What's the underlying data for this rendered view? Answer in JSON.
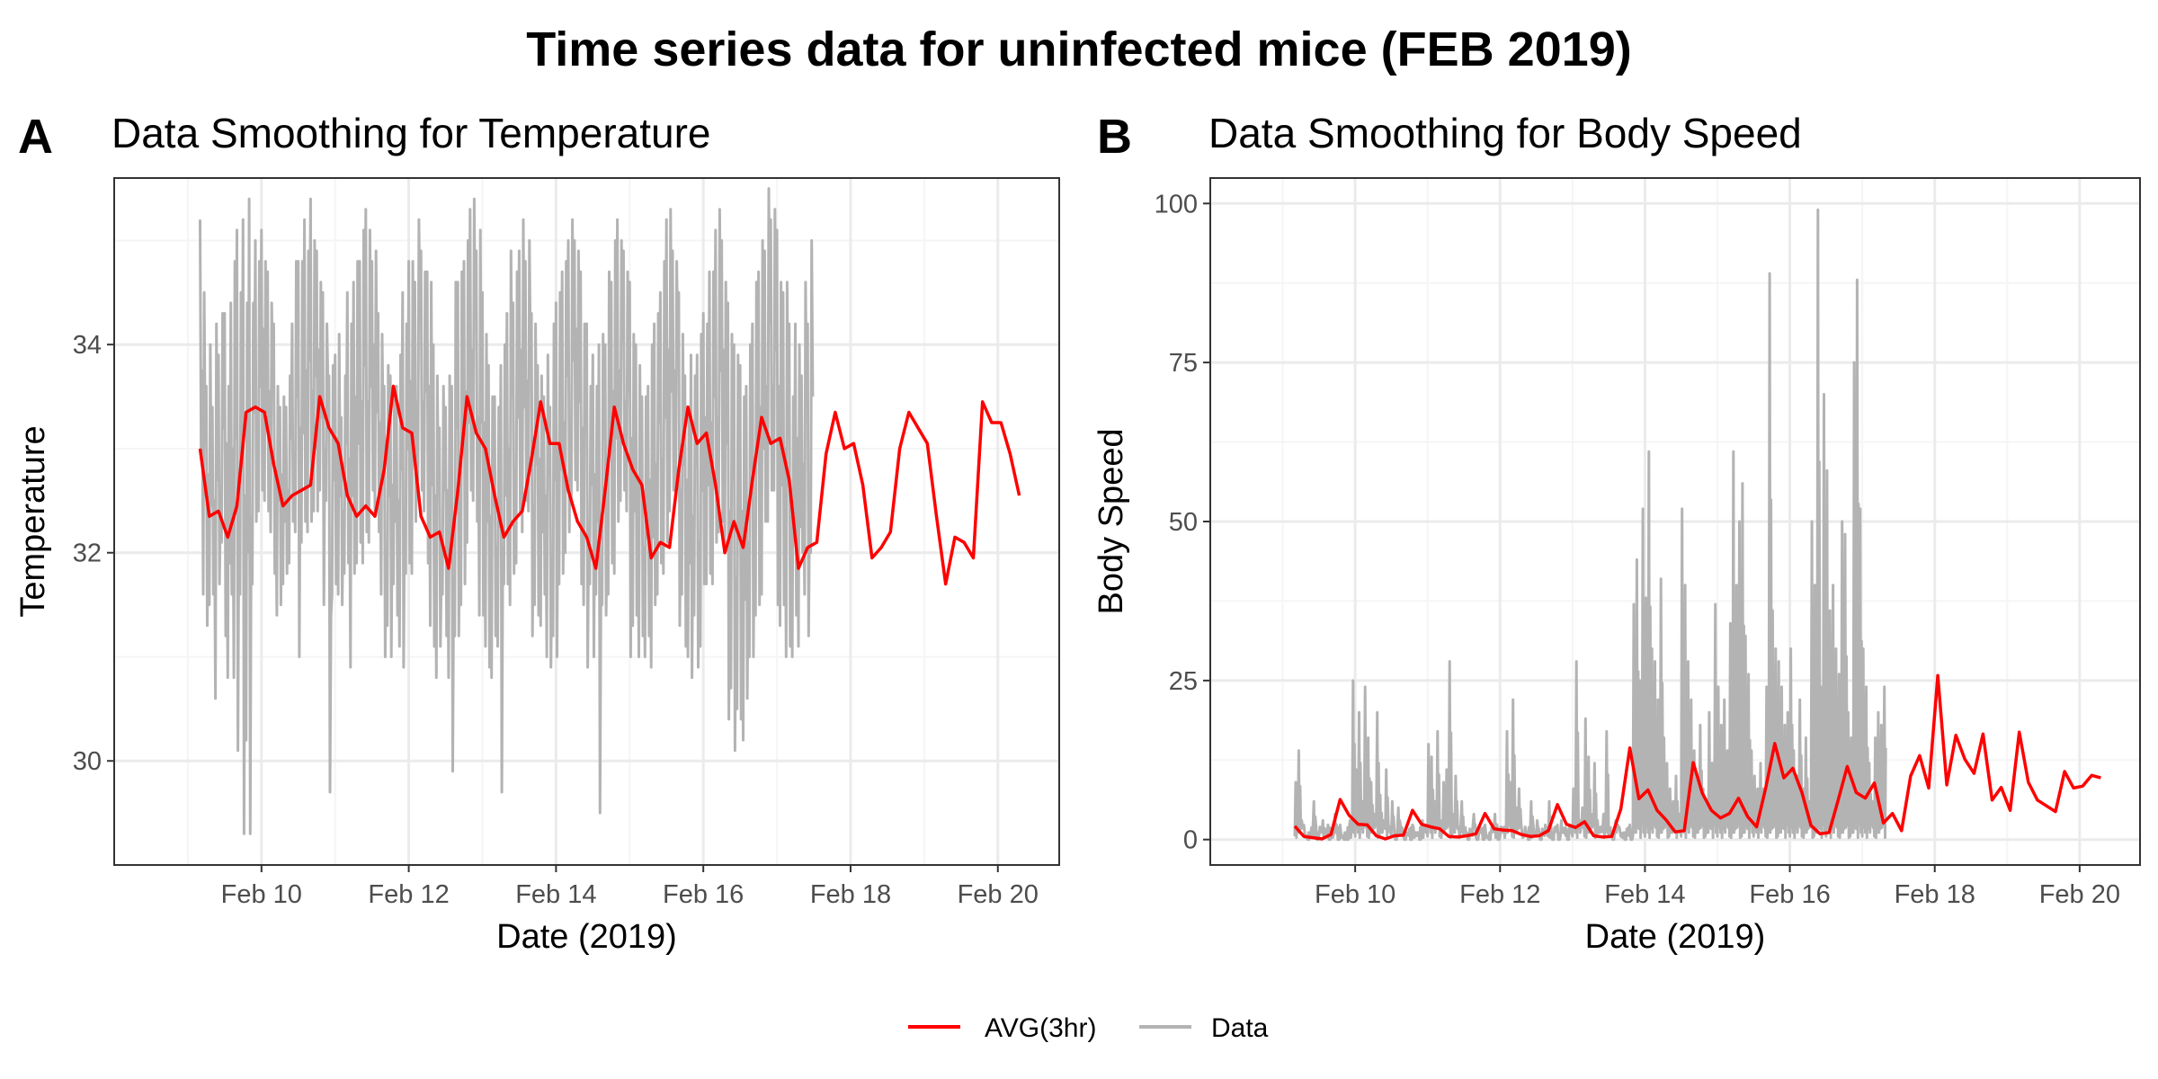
{
  "figure": {
    "title": "Time series data for uninfected mice (FEB 2019)"
  },
  "legend": {
    "position": "bottom",
    "items": [
      {
        "label": "AVG(3hr)",
        "color": "#ff0000"
      },
      {
        "label": "Data",
        "color": "#b3b3b3"
      }
    ]
  },
  "colors": {
    "avg": "#ff0000",
    "data": "#b3b3b3",
    "grid_major": "#ebebeb",
    "grid_minor": "#f5f5f5",
    "panel_border": "#333333"
  },
  "chart_data": [
    {
      "type": "line",
      "panel_letter": "A",
      "title": "Data Smoothing for Temperature",
      "xlabel": "Date (2019)",
      "ylabel": "Temperature",
      "grid": true,
      "xlim": [
        "2019-02-08",
        "2019-02-20 20:00"
      ],
      "ylim": [
        29.0,
        35.6
      ],
      "x_ticks": [
        {
          "date": "2019-02-10",
          "label": "Feb 10"
        },
        {
          "date": "2019-02-12",
          "label": "Feb 12"
        },
        {
          "date": "2019-02-14",
          "label": "Feb 14"
        },
        {
          "date": "2019-02-16",
          "label": "Feb 16"
        },
        {
          "date": "2019-02-18",
          "label": "Feb 18"
        },
        {
          "date": "2019-02-20",
          "label": "Feb 20"
        }
      ],
      "y_ticks": [
        {
          "value": 30,
          "label": "30"
        },
        {
          "value": 32,
          "label": "32"
        },
        {
          "value": 34,
          "label": "34"
        }
      ],
      "data_range": {
        "start": "2019-02-09 04:00",
        "end": "2019-02-20 05:00"
      },
      "series": [
        {
          "name": "Data",
          "x_start": "2019-02-09 04:00",
          "step_hours": 1,
          "low": [
            32.9,
            31.6,
            31.3,
            31.5,
            31.6,
            30.6,
            31.7,
            32.1,
            31.2,
            30.8,
            31.6,
            30.8,
            30.1,
            31.6,
            29.3,
            30.2,
            29.3,
            31.7,
            32.3,
            32.4,
            32.6,
            32.5,
            32.4,
            32.2,
            31.8,
            31.4,
            31.5,
            31.7,
            31.8,
            31.9,
            32.3,
            32.2,
            31.0,
            32.1,
            32.3,
            32.2,
            32.3,
            32.4,
            32.4,
            32.6,
            31.5,
            32.5,
            29.7,
            31.6,
            31.7,
            31.6,
            31.5,
            31.8,
            31.9,
            30.9,
            31.8,
            31.9,
            32.1,
            31.9,
            32.2,
            32.1,
            32.6,
            32.4,
            32.2,
            31.6,
            31.0,
            31.3,
            31.0,
            31.7,
            31.4,
            31.1,
            30.9,
            31.8,
            31.9,
            31.8,
            32.3,
            32.7,
            32.6,
            32.4,
            31.9,
            31.3,
            31.1,
            30.8,
            31.1,
            31.6,
            31.2,
            30.8,
            29.9,
            31.2,
            31.2,
            31.5,
            31.7,
            32.1,
            32.6,
            32.5,
            32.3,
            31.4,
            31.4,
            31.1,
            30.9,
            30.8,
            31.2,
            31.1,
            29.7,
            31.7,
            31.7,
            31.5,
            31.8,
            31.9,
            32.4,
            32.2,
            32.5,
            32.4,
            31.2,
            31.5,
            31.4,
            31.3,
            31.6,
            31.0,
            30.9,
            31.2,
            31.0,
            31.7,
            31.8,
            32.0,
            32.2,
            32.5,
            32.7,
            32.6,
            31.7,
            31.5,
            30.9,
            31.7,
            31.0,
            31.6,
            29.5,
            31.5,
            31.4,
            31.6,
            31.9,
            31.8,
            32.3,
            32.5,
            32.6,
            32.4,
            31.0,
            31.3,
            31.4,
            31.0,
            31.2,
            31.0,
            31.2,
            30.9,
            31.5,
            31.6,
            31.9,
            31.8,
            32.1,
            32.4,
            32.6,
            32.6,
            31.3,
            31.6,
            31.1,
            31.0,
            30.8,
            31.4,
            30.9,
            31.1,
            31.7,
            31.7,
            31.8,
            31.7,
            32.1,
            32.2,
            32.3,
            32.1,
            30.4,
            30.7,
            30.1,
            30.5,
            30.4,
            30.2,
            30.6,
            31.0,
            31.0,
            31.4,
            31.5,
            31.6,
            32.3,
            32.3,
            32.6,
            32.6,
            31.5,
            31.3,
            31.5,
            31.0,
            31.1,
            31.0,
            31.4,
            31.1,
            32.0,
            31.6,
            31.2,
            32.0
          ],
          "high": [
            35.2,
            34.5,
            33.6,
            34.0,
            33.4,
            34.2,
            33.9,
            34.3,
            34.3,
            33.6,
            34.4,
            34.8,
            35.1,
            34.5,
            35.2,
            34.4,
            35.4,
            34.4,
            35.0,
            34.8,
            35.1,
            34.8,
            34.7,
            34.4,
            34.2,
            33.6,
            33.4,
            33.5,
            33.4,
            33.7,
            34.2,
            34.8,
            34.8,
            34.8,
            35.2,
            34.9,
            35.4,
            35.0,
            34.9,
            34.6,
            34.5,
            34.2,
            33.7,
            33.8,
            33.9,
            34.1,
            33.3,
            33.7,
            34.5,
            34.2,
            34.6,
            34.8,
            34.8,
            35.1,
            35.3,
            35.1,
            34.8,
            34.9,
            34.3,
            34.1,
            33.6,
            33.8,
            33.7,
            33.5,
            33.6,
            33.9,
            34.5,
            34.2,
            34.8,
            34.8,
            34.6,
            35.2,
            34.9,
            34.7,
            34.7,
            34.6,
            34.0,
            33.7,
            33.2,
            33.6,
            33.4,
            33.7,
            33.6,
            34.6,
            34.6,
            34.7,
            34.8,
            35.0,
            35.3,
            35.4,
            34.9,
            35.1,
            34.5,
            34.1,
            33.8,
            33.5,
            33.5,
            33.4,
            33.8,
            34.0,
            34.3,
            34.9,
            34.4,
            34.7,
            34.9,
            35.2,
            34.8,
            35.0,
            34.3,
            34.2,
            33.8,
            33.7,
            33.5,
            33.9,
            33.4,
            34.2,
            34.4,
            34.5,
            34.7,
            34.8,
            35.0,
            35.2,
            35.0,
            34.9,
            34.7,
            34.2,
            34.2,
            33.6,
            33.9,
            33.6,
            34.0,
            34.1,
            34.0,
            34.7,
            34.6,
            35.0,
            35.2,
            35.0,
            34.9,
            34.7,
            34.6,
            34.1,
            34.0,
            33.8,
            33.5,
            33.5,
            33.6,
            34.0,
            34.2,
            34.3,
            34.5,
            34.8,
            35.2,
            35.3,
            34.9,
            34.8,
            34.5,
            34.1,
            33.7,
            33.4,
            33.9,
            33.7,
            33.9,
            34.1,
            34.3,
            34.2,
            34.7,
            34.7,
            35.1,
            35.3,
            35.0,
            34.6,
            34.4,
            34.1,
            34.0,
            33.9,
            33.8,
            33.5,
            33.6,
            34.0,
            34.2,
            34.6,
            34.7,
            35.0,
            34.9,
            35.5,
            35.2,
            35.3,
            35.1,
            34.6,
            34.5,
            34.6,
            34.2,
            33.5,
            34.2,
            34.0,
            33.7,
            34.6,
            34.2,
            35.0
          ]
        },
        {
          "name": "AVG(3hr)",
          "x_start": "2019-02-09 04:00",
          "step_hours": 3,
          "values": [
            33.0,
            32.35,
            32.4,
            32.15,
            32.45,
            33.35,
            33.4,
            33.35,
            32.85,
            32.45,
            32.55,
            32.6,
            32.65,
            33.5,
            33.2,
            33.05,
            32.55,
            32.35,
            32.45,
            32.35,
            32.8,
            33.6,
            33.2,
            33.15,
            32.35,
            32.15,
            32.2,
            31.85,
            32.6,
            33.5,
            33.15,
            33.0,
            32.55,
            32.15,
            32.3,
            32.4,
            32.9,
            33.45,
            33.05,
            33.05,
            32.6,
            32.3,
            32.15,
            31.85,
            32.6,
            33.4,
            33.05,
            32.8,
            32.65,
            31.95,
            32.1,
            32.05,
            32.8,
            33.4,
            33.05,
            33.15,
            32.65,
            32.0,
            32.3,
            32.05,
            32.7,
            33.3,
            33.05,
            33.1,
            32.7,
            31.85,
            32.05,
            32.1,
            32.95,
            33.35,
            33.0,
            33.05,
            32.65,
            31.95,
            32.05,
            32.2,
            33.0,
            33.35,
            33.2,
            33.05,
            32.35,
            31.7,
            32.15,
            32.1,
            31.95,
            33.45,
            33.25,
            33.25,
            32.95,
            32.55
          ]
        }
      ]
    },
    {
      "type": "line",
      "panel_letter": "B",
      "title": "Data Smoothing for Body Speed",
      "xlabel": "Date (2019)",
      "ylabel": "Body Speed",
      "grid": true,
      "xlim": [
        "2019-02-08",
        "2019-02-20 20:00"
      ],
      "ylim": [
        -4,
        104
      ],
      "x_ticks": [
        {
          "date": "2019-02-10",
          "label": "Feb 10"
        },
        {
          "date": "2019-02-12",
          "label": "Feb 12"
        },
        {
          "date": "2019-02-14",
          "label": "Feb 14"
        },
        {
          "date": "2019-02-16",
          "label": "Feb 16"
        },
        {
          "date": "2019-02-18",
          "label": "Feb 18"
        },
        {
          "date": "2019-02-20",
          "label": "Feb 20"
        }
      ],
      "y_ticks": [
        {
          "value": 0,
          "label": "0"
        },
        {
          "value": 25,
          "label": "25"
        },
        {
          "value": 50,
          "label": "50"
        },
        {
          "value": 75,
          "label": "75"
        },
        {
          "value": 100,
          "label": "100"
        }
      ],
      "data_range": {
        "start": "2019-02-09 04:00",
        "end": "2019-02-20 05:00"
      },
      "series": [
        {
          "name": "Data",
          "x_start": "2019-02-09 04:00",
          "step_hours": 1,
          "values": [
            9,
            14,
            3,
            1,
            0,
            1,
            6,
            0,
            2,
            3,
            1,
            0,
            1,
            4,
            0,
            1,
            0,
            0,
            3,
            25,
            11,
            20,
            6,
            24,
            16,
            9,
            4,
            20,
            7,
            3,
            11,
            2,
            6,
            0,
            5,
            1,
            0,
            1,
            0,
            2,
            1,
            0,
            3,
            2,
            15,
            13,
            6,
            17,
            3,
            9,
            11,
            28,
            4,
            10,
            2,
            6,
            1,
            0,
            1,
            4,
            0,
            2,
            0,
            1,
            0,
            2,
            4,
            0,
            2,
            2,
            17,
            9,
            22,
            5,
            8,
            1,
            2,
            0,
            6,
            1,
            3,
            0,
            1,
            1,
            6,
            0,
            2,
            0,
            3,
            1,
            0,
            2,
            8,
            28,
            3,
            5,
            19,
            13,
            4,
            12,
            3,
            2,
            4,
            17,
            1,
            0,
            3,
            2,
            1,
            0,
            1,
            0,
            37,
            44,
            25,
            52,
            38,
            61,
            30,
            28,
            22,
            41,
            16,
            12,
            8,
            6,
            10,
            4,
            52,
            40,
            28,
            22,
            14,
            10,
            18,
            8,
            6,
            20,
            12,
            37,
            24,
            18,
            22,
            14,
            34,
            61,
            40,
            50,
            56,
            32,
            26,
            14,
            10,
            8,
            12,
            8,
            24,
            89,
            36,
            30,
            28,
            24,
            18,
            20,
            30,
            14,
            10,
            22,
            8,
            16,
            6,
            50,
            40,
            99,
            24,
            70,
            58,
            36,
            40,
            30,
            26,
            50,
            48,
            20,
            16,
            75,
            88,
            52,
            30,
            24,
            12,
            6,
            16,
            20,
            18,
            24
          ]
        },
        {
          "name": "AVG(3hr)",
          "x_start": "2019-02-09 04:00",
          "step_hours": 3,
          "values": [
            2.1,
            0.5,
            0.3,
            0.1,
            0.8,
            6.3,
            3.8,
            2.4,
            2.3,
            0.6,
            0.1,
            0.6,
            0.7,
            4.6,
            2.4,
            2.0,
            1.7,
            0.5,
            0.4,
            0.6,
            0.9,
            4.1,
            1.7,
            1.5,
            1.4,
            0.8,
            0.5,
            0.6,
            1.4,
            5.5,
            2.4,
            1.9,
            2.8,
            0.6,
            0.4,
            0.5,
            4.8,
            14.4,
            6.4,
            7.8,
            4.6,
            3.1,
            1.2,
            1.4,
            12.1,
            7.3,
            4.6,
            3.4,
            4.1,
            6.5,
            3.6,
            2.0,
            8.1,
            15.1,
            9.7,
            11.2,
            7.4,
            2.2,
            0.9,
            1.1,
            6.2,
            11.5,
            7.4,
            6.5,
            8.9,
            2.6,
            4.1,
            1.4,
            10.0,
            13.2,
            8.1,
            25.8,
            8.6,
            16.4,
            12.6,
            10.4,
            16.6,
            6.2,
            8.2,
            4.6,
            16.9,
            9.0,
            6.2,
            5.3,
            4.4,
            10.7,
            8.1,
            8.4,
            10.1,
            9.7
          ]
        }
      ]
    }
  ]
}
